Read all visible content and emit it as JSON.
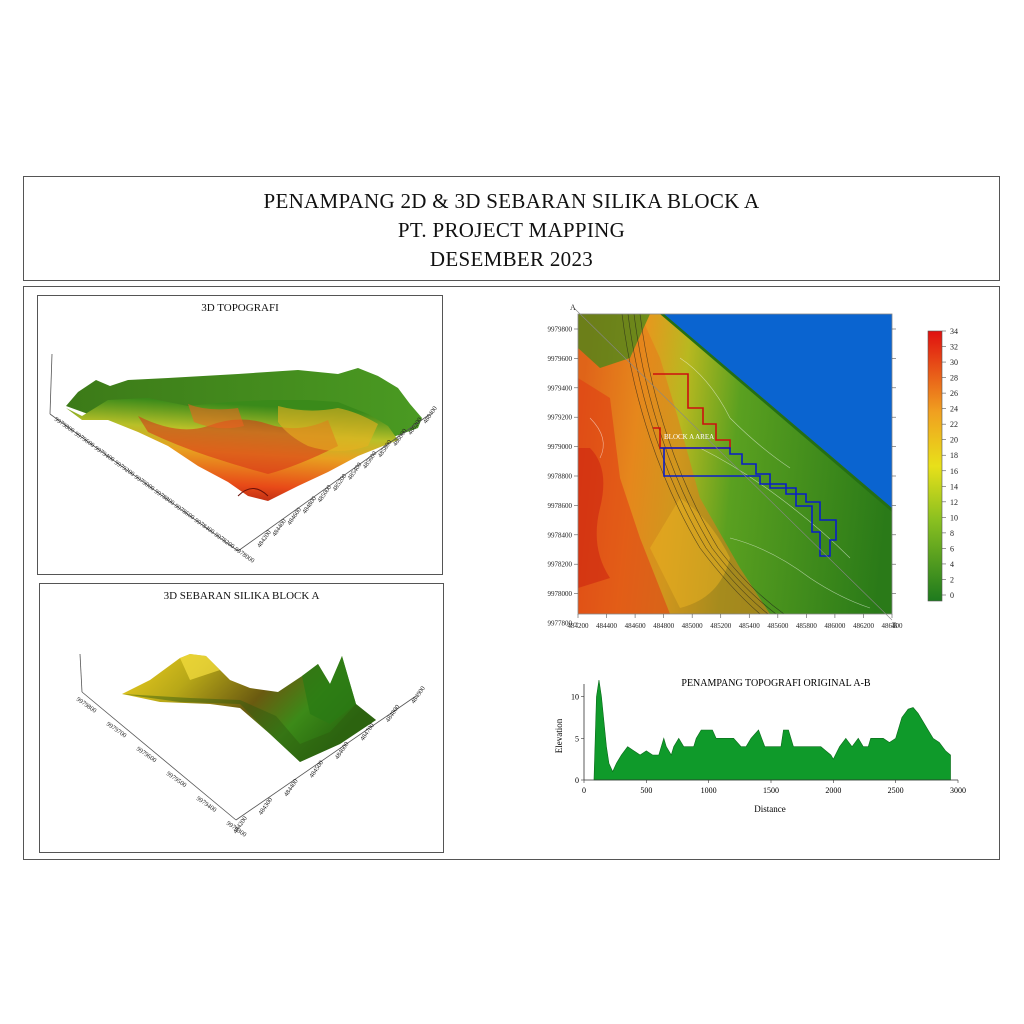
{
  "header": {
    "line1": "PENAMPANG 2D & 3D SEBARAN SILIKA BLOCK A",
    "line2": "PT. PROJECT MAPPING",
    "line3": "DESEMBER 2023"
  },
  "panel_topo3d": {
    "title": "3D TOPOGRAFI",
    "y_ticks": [
      "9979800",
      "9979600",
      "9979400",
      "9979200",
      "9979000",
      "9978800",
      "9978600",
      "9978400",
      "9978200",
      "9978000"
    ],
    "x_ticks": [
      "484200",
      "484400",
      "484600",
      "484800",
      "485000",
      "485200",
      "485400",
      "485600",
      "485800",
      "486000",
      "486200",
      "486400"
    ]
  },
  "panel_silika3d": {
    "title": "3D SEBARAN SILIKA BLOCK A",
    "y_ticks": [
      "9979800",
      "9979700",
      "9979600",
      "9979500",
      "9979400",
      "9979300"
    ],
    "x_ticks": [
      "484200",
      "484300",
      "484400",
      "484500",
      "484600",
      "484700",
      "484800",
      "484900"
    ]
  },
  "map": {
    "label_a": "A",
    "label_b": "B",
    "block_label": "BLOCK A AREA",
    "y_ticks": [
      "9979800",
      "9979600",
      "9979400",
      "9979200",
      "9979000",
      "9978800",
      "9978600",
      "9978400",
      "9978200",
      "9978000",
      "9977800"
    ],
    "x_ticks": [
      "484200",
      "484400",
      "484600",
      "484800",
      "485000",
      "485200",
      "485400",
      "485600",
      "485800",
      "486000",
      "486200",
      "486400"
    ],
    "colorbar_ticks": [
      "34",
      "32",
      "30",
      "28",
      "26",
      "24",
      "22",
      "20",
      "18",
      "16",
      "14",
      "12",
      "10",
      "8",
      "6",
      "4",
      "2",
      "0"
    ],
    "colors": {
      "low": "#1e7a1e",
      "mid": "#e8e01a",
      "high": "#e01010",
      "water": "#0a64d0",
      "block_red": "#cc1010",
      "block_blue": "#0a1ec8"
    }
  },
  "chart_data": {
    "type": "area",
    "title": "PENAMPANG TOPOGRAFI ORIGINAL A-B",
    "xlabel": "Distance",
    "ylabel": "Elevation",
    "xlim": [
      0,
      3000
    ],
    "ylim": [
      0,
      12
    ],
    "x_ticks": [
      0,
      500,
      1000,
      1500,
      2000,
      2500,
      3000
    ],
    "y_ticks": [
      0,
      5,
      10
    ],
    "color": "#0f9a2a",
    "x": [
      80,
      100,
      120,
      140,
      160,
      180,
      200,
      230,
      260,
      300,
      350,
      400,
      450,
      500,
      550,
      600,
      640,
      660,
      700,
      720,
      760,
      800,
      850,
      880,
      900,
      940,
      980,
      1000,
      1030,
      1060,
      1100,
      1140,
      1180,
      1200,
      1260,
      1300,
      1340,
      1400,
      1450,
      1500,
      1540,
      1580,
      1600,
      1640,
      1680,
      1720,
      1760,
      1800,
      1840,
      1880,
      1900,
      1940,
      1980,
      2000,
      2050,
      2100,
      2150,
      2200,
      2240,
      2280,
      2300,
      2340,
      2400,
      2450,
      2500,
      2550,
      2600,
      2640,
      2680,
      2720,
      2760,
      2800,
      2850,
      2900,
      2940
    ],
    "y": [
      0,
      10,
      12,
      10,
      7,
      4,
      2,
      1,
      2,
      3,
      4,
      3.5,
      3,
      3.5,
      3,
      3,
      5,
      4,
      3,
      4,
      5,
      4,
      4,
      4,
      5,
      6,
      6,
      6,
      6,
      5,
      5,
      5,
      5,
      5,
      4,
      4,
      5,
      6,
      4,
      4,
      4,
      4,
      6,
      6,
      4,
      4,
      4,
      4,
      4,
      4,
      4,
      3.5,
      3,
      2.5,
      4,
      5,
      4,
      5,
      4,
      4,
      5,
      5,
      5,
      4.5,
      5,
      7.5,
      8.5,
      8.7,
      8,
      7,
      6,
      5,
      4.5,
      3.5,
      3
    ]
  }
}
